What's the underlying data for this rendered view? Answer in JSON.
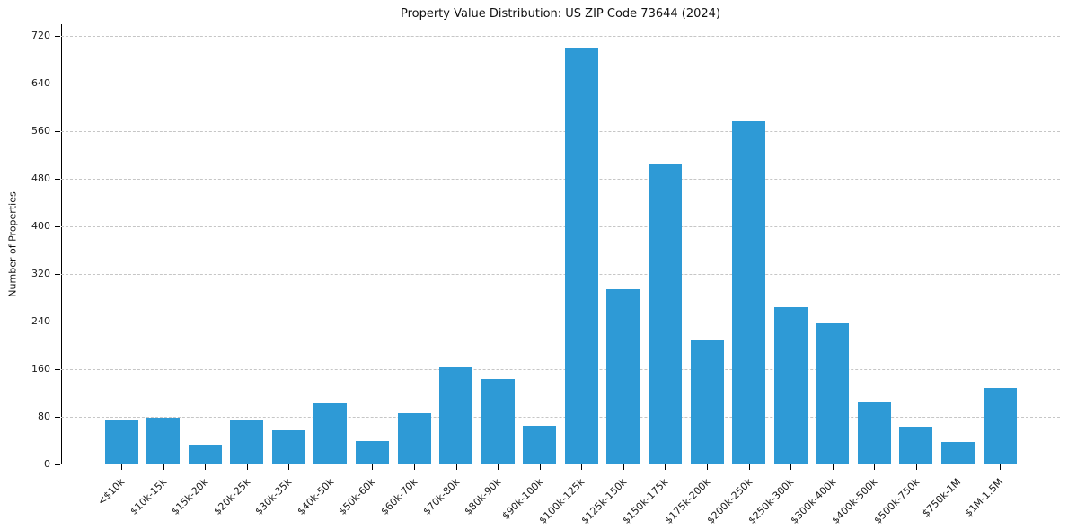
{
  "chart_data": {
    "type": "bar",
    "title": "Property Value Distribution: US ZIP Code 73644 (2024)",
    "xlabel": "",
    "ylabel": "Number of Properties",
    "categories": [
      "<$10k",
      "$10k-15k",
      "$15k-20k",
      "$20k-25k",
      "$30k-35k",
      "$40k-50k",
      "$50k-60k",
      "$60k-70k",
      "$70k-80k",
      "$80k-90k",
      "$90k-100k",
      "$100k-125k",
      "$125k-150k",
      "$150k-175k",
      "$175k-200k",
      "$200k-250k",
      "$250k-300k",
      "$300k-400k",
      "$400k-500k",
      "$500k-750k",
      "$750k-1M",
      "$1M-1.5M"
    ],
    "values": [
      76,
      79,
      33,
      75,
      58,
      103,
      39,
      86,
      165,
      143,
      65,
      700,
      294,
      504,
      208,
      576,
      264,
      237,
      106,
      63,
      37,
      128
    ],
    "yticks": [
      0,
      80,
      160,
      240,
      320,
      400,
      480,
      560,
      640,
      720
    ],
    "ylim": [
      0,
      740
    ],
    "grid": "horizontal-dashed",
    "legend": "none",
    "bar_color": "#2E9AD6"
  }
}
